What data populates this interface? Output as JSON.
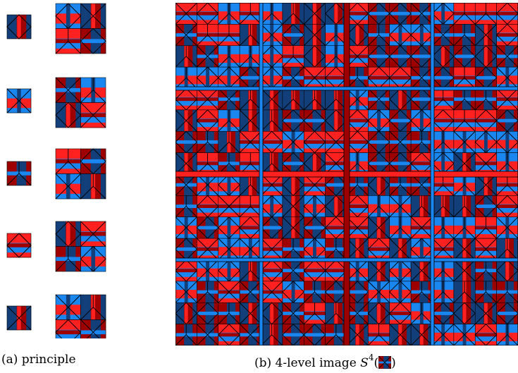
{
  "colors": {
    "red": "#ff2020",
    "dark_red": "#9e0000",
    "blue": "#1a86f0",
    "dark_blue": "#123e7a",
    "line": "#000000"
  },
  "principle_rows": [
    {
      "tile": "tile-a"
    },
    {
      "tile": "tile-b"
    },
    {
      "tile": "tile-c"
    },
    {
      "tile": "tile-d"
    },
    {
      "tile": "tile-e"
    }
  ],
  "captions": {
    "a": "(a) principle",
    "b_prefix": "(b) 4-level image ",
    "b_symbol": "S",
    "b_exponent": "4",
    "b_open": "(",
    "b_close": ")"
  }
}
